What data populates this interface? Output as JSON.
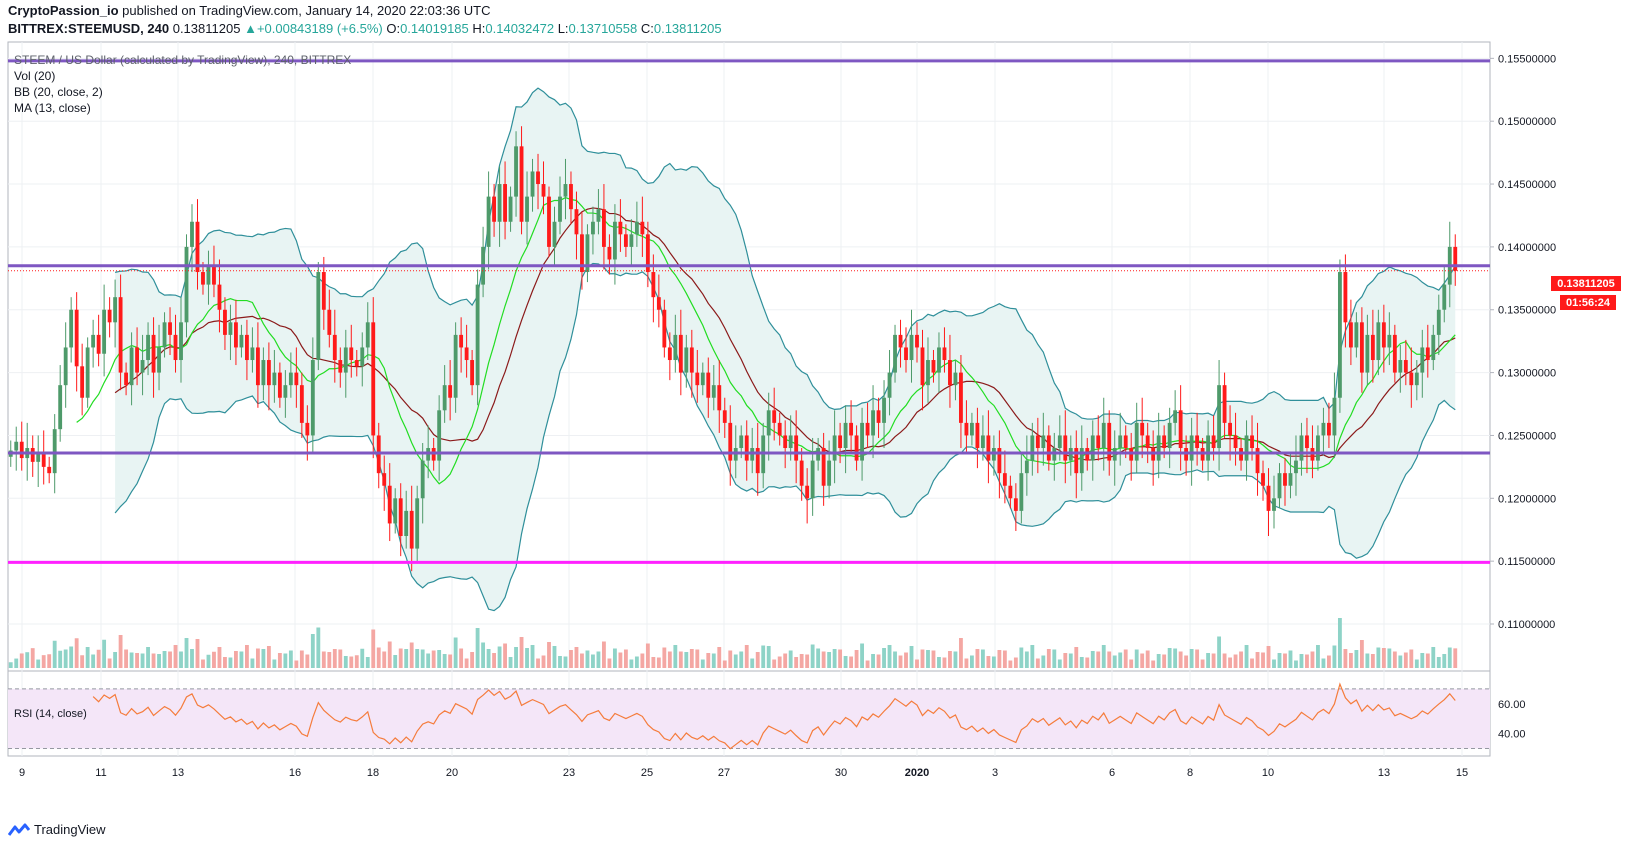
{
  "header": {
    "author": "CryptoPassion_io",
    "published_text": "published on TradingView.com, January 14, 2020 22:03:36 UTC",
    "symbol": "BITTREX:STEEMUSD, 240",
    "last": "0.13811205",
    "change": "+0.00843189 (+6.5%)",
    "o_label": "O:",
    "o_value": "0.14019185",
    "h_label": "H:",
    "h_value": "0.14032472",
    "l_label": "L:",
    "l_value": "0.13710558",
    "c_label": "C:",
    "c_value": "0.13811205"
  },
  "legend": {
    "title": "STEEM / US Dollar (calculated by TradingView), 240, BITTREX",
    "vol": "Vol (20)",
    "bb": "BB (20, close, 2)",
    "ma": "MA (13, close)"
  },
  "rsi_label": "RSI (14, close)",
  "price_badge": "0.13811205",
  "countdown_badge": "01:56:24",
  "footer": {
    "brand": "TradingView"
  },
  "colors": {
    "up": "#4e9a6a",
    "down": "#ff1a1a",
    "bb_line": "#2f8f9a",
    "bb_fill": "#e8f4f3",
    "ma": "#22dd22",
    "basis": "#8b1a1a",
    "level": "#7e57c2",
    "support": "#ff22ff",
    "vol_up": "#8ed3c7",
    "vol_down": "#f4a7a3",
    "rsi_line": "#f57c3c",
    "rsi_bg": "#f4e6f8"
  },
  "chart_data": {
    "type": "candlestick",
    "price_axis_ticks": [
      "0.15500000",
      "0.15000000",
      "0.14500000",
      "0.14000000",
      "0.13500000",
      "0.13000000",
      "0.12500000",
      "0.12000000",
      "0.11500000",
      "0.11000000"
    ],
    "ylim": [
      0.1065,
      0.1563
    ],
    "x_ticks": [
      "9",
      "11",
      "13",
      "16",
      "18",
      "20",
      "23",
      "25",
      "27",
      "30",
      "2020",
      "3",
      "6",
      "8",
      "10",
      "13",
      "15"
    ],
    "horizontal_levels": [
      {
        "value": 0.1548,
        "color": "#7e57c2"
      },
      {
        "value": 0.1385,
        "color": "#7e57c2"
      },
      {
        "value": 0.1236,
        "color": "#7e57c2"
      },
      {
        "value": 0.1149,
        "color": "#ff22ff"
      }
    ],
    "close_series": [
      0.1238,
      0.1245,
      0.1232,
      0.124,
      0.1229,
      0.1236,
      0.1225,
      0.122,
      0.1255,
      0.129,
      0.132,
      0.135,
      0.1305,
      0.128,
      0.132,
      0.133,
      0.1315,
      0.135,
      0.134,
      0.136,
      0.13,
      0.129,
      0.132,
      0.13,
      0.131,
      0.133,
      0.13,
      0.132,
      0.134,
      0.133,
      0.131,
      0.134,
      0.14,
      0.142,
      0.138,
      0.137,
      0.1385,
      0.137,
      0.135,
      0.133,
      0.134,
      0.132,
      0.133,
      0.131,
      0.132,
      0.129,
      0.131,
      0.129,
      0.13,
      0.128,
      0.129,
      0.13,
      0.129,
      0.126,
      0.125,
      0.131,
      0.138,
      0.135,
      0.133,
      0.131,
      0.13,
      0.132,
      0.131,
      0.1305,
      0.132,
      0.134,
      0.125,
      0.122,
      0.121,
      0.118,
      0.12,
      0.117,
      0.119,
      0.116,
      0.12,
      0.123,
      0.124,
      0.123,
      0.127,
      0.129,
      0.128,
      0.133,
      0.132,
      0.131,
      0.129,
      0.137,
      0.14,
      0.144,
      0.142,
      0.145,
      0.142,
      0.144,
      0.148,
      0.142,
      0.144,
      0.146,
      0.145,
      0.144,
      0.14,
      0.142,
      0.144,
      0.145,
      0.143,
      0.141,
      0.138,
      0.141,
      0.142,
      0.143,
      0.14,
      0.139,
      0.142,
      0.141,
      0.14,
      0.141,
      0.142,
      0.141,
      0.138,
      0.136,
      0.135,
      0.132,
      0.131,
      0.133,
      0.13,
      0.132,
      0.13,
      0.129,
      0.13,
      0.128,
      0.129,
      0.127,
      0.126,
      0.123,
      0.124,
      0.125,
      0.123,
      0.124,
      0.122,
      0.125,
      0.127,
      0.126,
      0.125,
      0.124,
      0.125,
      0.123,
      0.121,
      0.12,
      0.123,
      0.124,
      0.121,
      0.123,
      0.125,
      0.124,
      0.126,
      0.125,
      0.123,
      0.126,
      0.125,
      0.127,
      0.126,
      0.128,
      0.13,
      0.133,
      0.132,
      0.131,
      0.133,
      0.132,
      0.129,
      0.131,
      0.13,
      0.132,
      0.131,
      0.129,
      0.13,
      0.126,
      0.125,
      0.126,
      0.124,
      0.125,
      0.123,
      0.124,
      0.122,
      0.121,
      0.12,
      0.119,
      0.122,
      0.123,
      0.125,
      0.124,
      0.125,
      0.123,
      0.124,
      0.125,
      0.123,
      0.124,
      0.122,
      0.124,
      0.123,
      0.125,
      0.124,
      0.126,
      0.123,
      0.124,
      0.125,
      0.124,
      0.123,
      0.126,
      0.125,
      0.124,
      0.123,
      0.125,
      0.124,
      0.126,
      0.127,
      0.124,
      0.123,
      0.125,
      0.124,
      0.123,
      0.125,
      0.124,
      0.129,
      0.126,
      0.125,
      0.124,
      0.123,
      0.125,
      0.124,
      0.122,
      0.121,
      0.119,
      0.12,
      0.122,
      0.121,
      0.122,
      0.123,
      0.125,
      0.124,
      0.123,
      0.125,
      0.126,
      0.125,
      0.128,
      0.138,
      0.134,
      0.132,
      0.134,
      0.13,
      0.133,
      0.131,
      0.134,
      0.132,
      0.133,
      0.13,
      0.131,
      0.13,
      0.129,
      0.13,
      0.132,
      0.131,
      0.133,
      0.135,
      0.137,
      0.14,
      0.1381
    ],
    "rsi_ticks": [
      "60.00",
      "40.00"
    ],
    "rsi_range": [
      25,
      80
    ],
    "rsi_bands": [
      70,
      30
    ]
  }
}
